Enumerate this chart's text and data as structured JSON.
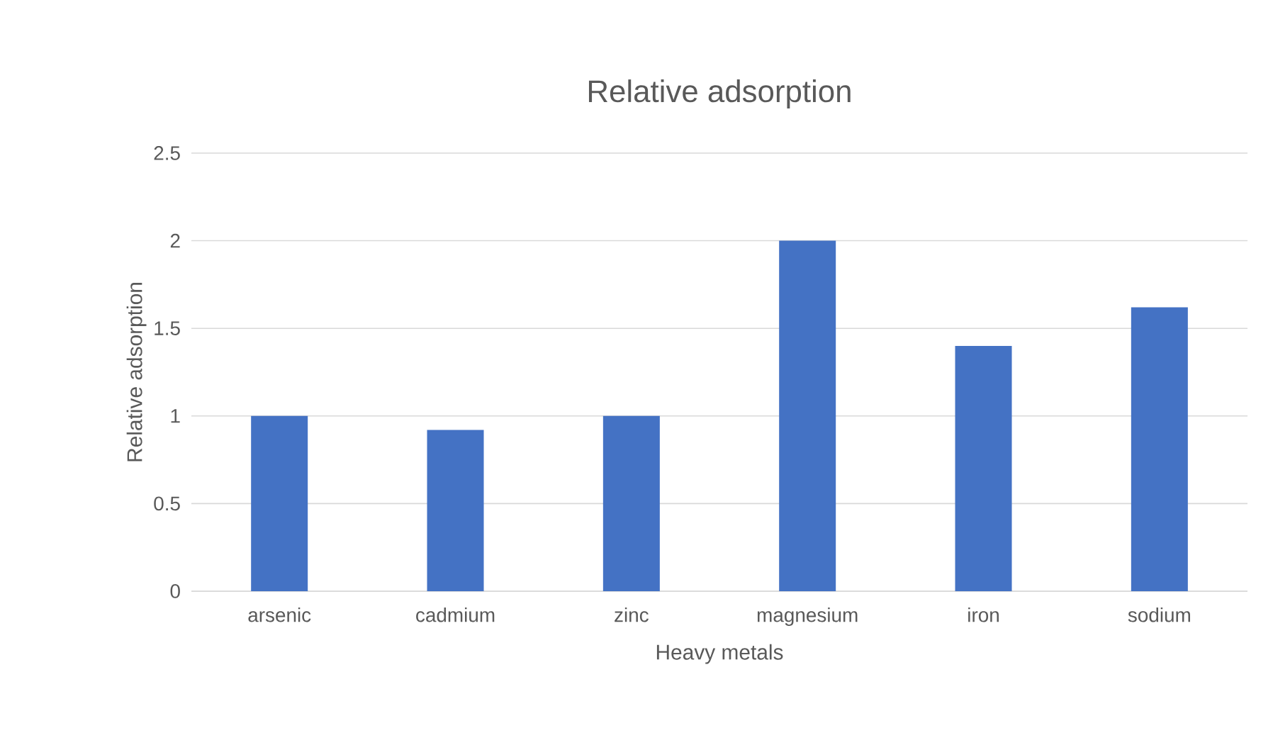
{
  "chart_data": {
    "type": "bar",
    "title": "Relative adsorption",
    "xlabel": "Heavy metals",
    "ylabel": "Relative adsorption",
    "categories": [
      "arsenic",
      "cadmium",
      "zinc",
      "magnesium",
      "iron",
      "sodium"
    ],
    "values": [
      1,
      0.92,
      1,
      2,
      1.4,
      1.62
    ],
    "color": "#4472c4",
    "ylim": [
      0,
      2.5
    ],
    "yticks": [
      0,
      0.5,
      1,
      1.5,
      2,
      2.5
    ],
    "grid": "y"
  }
}
